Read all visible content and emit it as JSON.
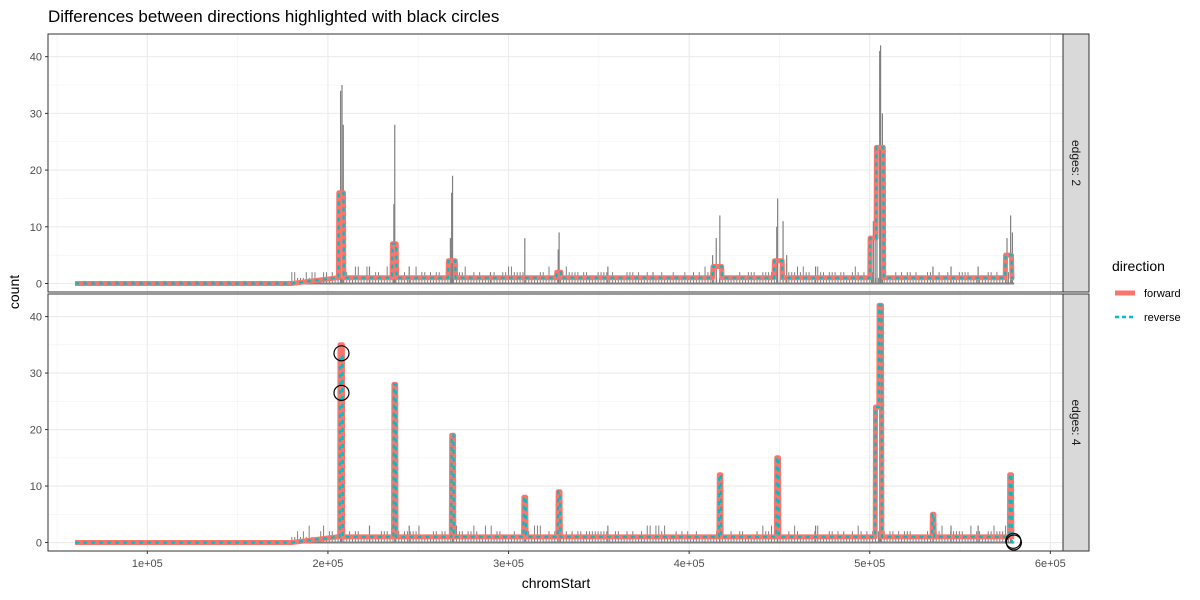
{
  "chart_data": {
    "type": "line",
    "title": "Differences between directions highlighted with black circles",
    "xlabel": "chromStart",
    "ylabel": "count",
    "xlim": [
      45000,
      607000
    ],
    "ylim": [
      -1.5,
      44
    ],
    "x_ticks": [
      100000,
      200000,
      300000,
      400000,
      500000,
      600000
    ],
    "x_tick_labels": [
      "1e+05",
      "2e+05",
      "3e+05",
      "4e+05",
      "5e+05",
      "6e+05"
    ],
    "y_ticks": [
      0,
      10,
      20,
      30,
      40
    ],
    "y_tick_labels": [
      "0",
      "10",
      "20",
      "30",
      "40"
    ],
    "grid": true,
    "legend": {
      "title": "direction",
      "position": "right",
      "items": [
        {
          "label": "forward",
          "color": "#f8766d",
          "style": "solid"
        },
        {
          "label": "reverse",
          "color": "#00bfc4",
          "style": "dashed"
        }
      ]
    },
    "raw_color": "#808080",
    "panels": [
      {
        "strip": "edges: 2",
        "raw_spikes": [
          [
            207000,
            34
          ],
          [
            207800,
            35
          ],
          [
            208500,
            28
          ],
          [
            237000,
            28
          ],
          [
            236500,
            14
          ],
          [
            269000,
            19
          ],
          [
            268500,
            16
          ],
          [
            267800,
            8
          ],
          [
            309000,
            8
          ],
          [
            328000,
            9
          ],
          [
            327500,
            6
          ],
          [
            415000,
            8
          ],
          [
            417000,
            12
          ],
          [
            413000,
            5
          ],
          [
            449000,
            15
          ],
          [
            448500,
            10
          ],
          [
            452000,
            11
          ],
          [
            454000,
            5
          ],
          [
            502000,
            11
          ],
          [
            504000,
            15
          ],
          [
            506000,
            42
          ],
          [
            505500,
            41
          ],
          [
            507000,
            30
          ],
          [
            503000,
            18
          ],
          [
            501000,
            8
          ],
          [
            535000,
            3
          ],
          [
            576000,
            8
          ],
          [
            578000,
            12
          ],
          [
            579000,
            9
          ],
          [
            223000,
            3
          ],
          [
            245000,
            3
          ],
          [
            290000,
            2
          ],
          [
            355000,
            3
          ],
          [
            380000,
            2
          ],
          [
            470000,
            3
          ],
          [
            545000,
            3
          ],
          [
            560000,
            3
          ]
        ],
        "forward": [
          [
            60000,
            0
          ],
          [
            180000,
            0
          ],
          [
            205000,
            1
          ],
          [
            205800,
            1
          ],
          [
            206000,
            16
          ],
          [
            208600,
            16
          ],
          [
            208800,
            1
          ],
          [
            235500,
            1
          ],
          [
            235700,
            7
          ],
          [
            237800,
            7
          ],
          [
            238000,
            1
          ],
          [
            266500,
            1
          ],
          [
            266700,
            4
          ],
          [
            270500,
            4
          ],
          [
            270700,
            1
          ],
          [
            326500,
            1
          ],
          [
            326700,
            2
          ],
          [
            329000,
            2
          ],
          [
            329200,
            1
          ],
          [
            413000,
            1
          ],
          [
            413200,
            3
          ],
          [
            418000,
            3
          ],
          [
            418200,
            1
          ],
          [
            447000,
            1
          ],
          [
            447200,
            4
          ],
          [
            451500,
            4
          ],
          [
            451700,
            1
          ],
          [
            500000,
            1
          ],
          [
            500200,
            8
          ],
          [
            503500,
            8
          ],
          [
            503700,
            24
          ],
          [
            507500,
            24
          ],
          [
            507700,
            1
          ],
          [
            575000,
            1
          ],
          [
            575200,
            5
          ],
          [
            578500,
            5
          ],
          [
            578700,
            1
          ],
          [
            580000,
            1
          ]
        ],
        "reverse": [
          [
            60000,
            0
          ],
          [
            180000,
            0
          ],
          [
            205000,
            1
          ],
          [
            205800,
            1
          ],
          [
            206000,
            16
          ],
          [
            208600,
            16
          ],
          [
            208800,
            1
          ],
          [
            235500,
            1
          ],
          [
            235700,
            7
          ],
          [
            237800,
            7
          ],
          [
            238000,
            1
          ],
          [
            266500,
            1
          ],
          [
            266700,
            4
          ],
          [
            270500,
            4
          ],
          [
            270700,
            1
          ],
          [
            326500,
            1
          ],
          [
            326700,
            2
          ],
          [
            329000,
            2
          ],
          [
            329200,
            1
          ],
          [
            413000,
            1
          ],
          [
            413200,
            3
          ],
          [
            418000,
            3
          ],
          [
            418200,
            1
          ],
          [
            447000,
            1
          ],
          [
            447200,
            4
          ],
          [
            451500,
            4
          ],
          [
            451700,
            1
          ],
          [
            500000,
            1
          ],
          [
            500200,
            8
          ],
          [
            503500,
            8
          ],
          [
            503700,
            24
          ],
          [
            507500,
            24
          ],
          [
            507700,
            1
          ],
          [
            575000,
            1
          ],
          [
            575200,
            5
          ],
          [
            578500,
            5
          ],
          [
            578700,
            1
          ],
          [
            580000,
            1
          ]
        ],
        "circles": []
      },
      {
        "strip": "edges: 4",
        "raw_spikes": [
          [
            207000,
            34
          ],
          [
            207800,
            35
          ],
          [
            237000,
            28
          ],
          [
            269000,
            19
          ],
          [
            309000,
            8
          ],
          [
            328000,
            9
          ],
          [
            417000,
            12
          ],
          [
            449000,
            15
          ],
          [
            506000,
            42
          ],
          [
            505500,
            41
          ],
          [
            535000,
            5
          ],
          [
            578000,
            12
          ],
          [
            223000,
            3
          ],
          [
            245000,
            3
          ],
          [
            355000,
            3
          ],
          [
            470000,
            3
          ],
          [
            545000,
            3
          ],
          [
            560000,
            3
          ]
        ],
        "forward": [
          [
            60000,
            0
          ],
          [
            180000,
            0
          ],
          [
            205000,
            1
          ],
          [
            206500,
            1
          ],
          [
            206700,
            35
          ],
          [
            208000,
            35
          ],
          [
            208200,
            1
          ],
          [
            236300,
            1
          ],
          [
            236500,
            28
          ],
          [
            237500,
            28
          ],
          [
            237700,
            1
          ],
          [
            268300,
            1
          ],
          [
            268500,
            19
          ],
          [
            269500,
            19
          ],
          [
            269700,
            1
          ],
          [
            308300,
            1
          ],
          [
            308500,
            8
          ],
          [
            309500,
            8
          ],
          [
            309700,
            1
          ],
          [
            327300,
            1
          ],
          [
            327500,
            9
          ],
          [
            328500,
            9
          ],
          [
            328700,
            1
          ],
          [
            416500,
            1
          ],
          [
            416700,
            12
          ],
          [
            417500,
            12
          ],
          [
            417700,
            1
          ],
          [
            448300,
            1
          ],
          [
            448500,
            15
          ],
          [
            449500,
            15
          ],
          [
            449700,
            1
          ],
          [
            503000,
            1
          ],
          [
            503200,
            24
          ],
          [
            505000,
            24
          ],
          [
            505200,
            42
          ],
          [
            506500,
            42
          ],
          [
            506700,
            1
          ],
          [
            534500,
            1
          ],
          [
            534700,
            5
          ],
          [
            535500,
            5
          ],
          [
            535700,
            1
          ],
          [
            577300,
            1
          ],
          [
            577500,
            12
          ],
          [
            578500,
            12
          ],
          [
            578700,
            1
          ],
          [
            580000,
            1
          ]
        ],
        "reverse": [
          [
            60000,
            0
          ],
          [
            180000,
            0
          ],
          [
            205000,
            1
          ],
          [
            206500,
            1
          ],
          [
            206700,
            33
          ],
          [
            208000,
            33
          ],
          [
            208200,
            1
          ],
          [
            236300,
            1
          ],
          [
            236500,
            28
          ],
          [
            237500,
            28
          ],
          [
            237700,
            1
          ],
          [
            268300,
            1
          ],
          [
            268500,
            19
          ],
          [
            269500,
            19
          ],
          [
            269700,
            1
          ],
          [
            308300,
            1
          ],
          [
            308500,
            8
          ],
          [
            309500,
            8
          ],
          [
            309700,
            1
          ],
          [
            327300,
            1
          ],
          [
            327500,
            9
          ],
          [
            328500,
            9
          ],
          [
            328700,
            1
          ],
          [
            416500,
            1
          ],
          [
            416700,
            12
          ],
          [
            417500,
            12
          ],
          [
            417700,
            1
          ],
          [
            448300,
            1
          ],
          [
            448500,
            15
          ],
          [
            449500,
            15
          ],
          [
            449700,
            1
          ],
          [
            503000,
            1
          ],
          [
            503200,
            24
          ],
          [
            505000,
            24
          ],
          [
            505200,
            42
          ],
          [
            506500,
            42
          ],
          [
            506700,
            1
          ],
          [
            534500,
            1
          ],
          [
            534700,
            5
          ],
          [
            535500,
            5
          ],
          [
            535700,
            1
          ],
          [
            577300,
            1
          ],
          [
            577500,
            12
          ],
          [
            578500,
            12
          ],
          [
            578700,
            0
          ],
          [
            580000,
            0
          ]
        ],
        "circles": [
          [
            207500,
            33.5
          ],
          [
            207500,
            26.5
          ],
          [
            579500,
            0.3
          ],
          [
            579800,
            0
          ]
        ]
      }
    ]
  }
}
